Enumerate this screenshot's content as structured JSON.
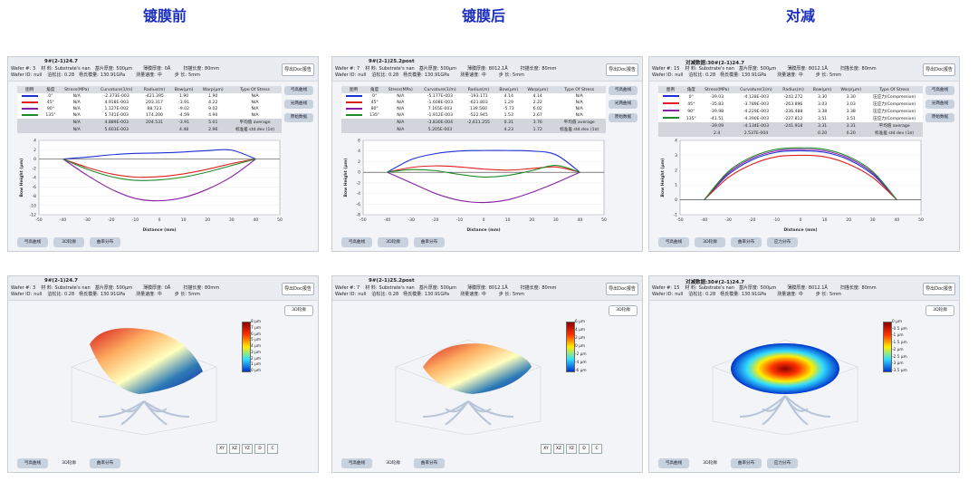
{
  "columns": [
    {
      "title": "镀膜前"
    },
    {
      "title": "镀膜后"
    },
    {
      "title": "对减"
    }
  ],
  "header_labels": {
    "wafer_no": "Wafer #:",
    "wafer_id": "Wafer ID:",
    "material": "材 料:",
    "poisson": "泊松比:",
    "thickness": "基片厚度:",
    "modulus": "杨氏模量:",
    "film": "薄膜厚度:",
    "speed": "测量速度:",
    "scan": "扫描长度:",
    "step": "步 长:",
    "export": "导出Doc报告"
  },
  "panels": [
    {
      "name": "9#(2-1)24.7",
      "prefix": "",
      "wafer_no": "3",
      "wafer_id": "null",
      "material": "Substrate's nan",
      "poisson": "0.28",
      "thickness": "500μm",
      "modulus": "130.91GPa",
      "film": "0Å",
      "speed": "中",
      "scan": "80mm",
      "step": "5mm",
      "table_headers": [
        "图例",
        "角度",
        "Stress(MPa)",
        "Curvature(1/m)",
        "Radius(m)",
        "Bow(μm)",
        "Warp(μm)",
        "Type Of Stress"
      ],
      "rows": [
        {
          "color": "#1f2fd6",
          "angle": "0°",
          "stress": "N/A",
          "curv": "-2.373E-003",
          "radius": "-421.395",
          "bow": "1.90",
          "warp": "1.90",
          "type": "N/A"
        },
        {
          "color": "#e02020",
          "angle": "45°",
          "stress": "N/A",
          "curv": "4.918E-003",
          "radius": "203.317",
          "bow": "-3.91",
          "warp": "4.22",
          "type": "N/A"
        },
        {
          "color": "#8a1fa6",
          "angle": "90°",
          "stress": "N/A",
          "curv": "1.127E-002",
          "radius": "88.723",
          "bow": "-9.02",
          "warp": "9.02",
          "type": "N/A"
        },
        {
          "color": "#1f8a2a",
          "angle": "135°",
          "stress": "N/A",
          "curv": "5.741E-003",
          "radius": "174.200",
          "bow": "-4.59",
          "warp": "4.90",
          "type": "N/A"
        }
      ],
      "avg": {
        "stress": "N/A",
        "curv": "4.889E-003",
        "radius": "204.531",
        "bow": "-3.91",
        "warp": "5.01",
        "type": "平均值 average"
      },
      "sd": {
        "stress": "N/A",
        "curv": "5.603E-003",
        "radius": "",
        "bow": "4.48",
        "warp": "2.96",
        "type": "标准差 std.dev (1σ)"
      },
      "side_buttons": [
        "弓高曲线",
        "光两曲线",
        "原始数据"
      ],
      "bottom_tabs": [
        "弓高曲线",
        "3D轮廓",
        "曲率分布"
      ],
      "bottom3d_tabs": [
        "弓高曲线",
        "3D轮廓",
        "曲率分布"
      ],
      "view3d_btn": "3D轮廓",
      "cbar_labels": [
        "8 μm",
        "7 μm",
        "6 μm",
        "5 μm",
        "4 μm",
        "3 μm",
        "2 μm",
        "1 μm",
        "0 μm"
      ],
      "view_buttons": [
        "XY",
        "XZ",
        "YZ",
        "D",
        "C"
      ]
    },
    {
      "name": "9#(2-1)25.2post",
      "prefix": "",
      "wafer_no": "7",
      "wafer_id": "null",
      "material": "Substrate's nan",
      "poisson": "0.28",
      "thickness": "500μm",
      "modulus": "130.91GPa",
      "film": "8012.1Å",
      "speed": "中",
      "scan": "80mm",
      "step": "5mm",
      "table_headers": [
        "图例",
        "角度",
        "Stress(MPa)",
        "Curvature(1/m)",
        "Radius(m)",
        "Bow(μm)",
        "Warp(μm)",
        "Type Of Stress"
      ],
      "rows": [
        {
          "color": "#1f2fd6",
          "angle": "0°",
          "stress": "N/A",
          "curv": "-5.177E-003",
          "radius": "-193.171",
          "bow": "4.14",
          "warp": "4.14",
          "type": "N/A"
        },
        {
          "color": "#e02020",
          "angle": "45°",
          "stress": "N/A",
          "curv": "-1.608E-003",
          "radius": "-621.803",
          "bow": "1.29",
          "warp": "2.22",
          "type": "N/A"
        },
        {
          "color": "#8a1fa6",
          "angle": "90°",
          "stress": "N/A",
          "curv": "7.165E-003",
          "radius": "139.560",
          "bow": "-5.73",
          "warp": "6.02",
          "type": "N/A"
        },
        {
          "color": "#1f8a2a",
          "angle": "135°",
          "stress": "N/A",
          "curv": "-1.912E-003",
          "radius": "-522.945",
          "bow": "1.53",
          "warp": "2.67",
          "type": "N/A"
        }
      ],
      "avg": {
        "stress": "N/A",
        "curv": "-3.830E-004",
        "radius": "-2,611.255",
        "bow": "0.31",
        "warp": "3.76",
        "type": "平均值 average"
      },
      "sd": {
        "stress": "N/A",
        "curv": "5.205E-003",
        "radius": "",
        "bow": "4.23",
        "warp": "1.72",
        "type": "标准差 std.dev (1σ)"
      },
      "side_buttons": [
        "弓高曲线",
        "光两曲线",
        "原始数据"
      ],
      "bottom_tabs": [
        "弓高曲线",
        "3D轮廓",
        "曲率分布"
      ],
      "bottom3d_tabs": [
        "弓高曲线",
        "3D轮廓",
        "曲率分布"
      ],
      "view3d_btn": "3D轮廓",
      "cbar_labels": [
        "6 μm",
        "4 μm",
        "2 μm",
        "0 μm",
        "-2 μm",
        "-4 μm",
        "-6 μm"
      ],
      "view_buttons": [
        "XY",
        "XZ",
        "YZ",
        "D",
        "C"
      ]
    },
    {
      "name": "30#(2-1)24.7",
      "prefix": "对减数据:",
      "wafer_no": "15",
      "wafer_id": "null",
      "material": "Substrate's nan",
      "poisson": "0.28",
      "thickness": "500μm",
      "modulus": "130.91GPa",
      "film": "8012.1Å",
      "speed": "中",
      "scan": "80mm",
      "step": "5mm",
      "table_headers": [
        "图例",
        "角度",
        "Stress(MPa)",
        "Curvature(1/m)",
        "Radius(m)",
        "Bow(μm)",
        "Warp(μm)",
        "Type Of Stress"
      ],
      "rows": [
        {
          "color": "#1f2fd6",
          "angle": "0°",
          "stress": "-39.03",
          "curv": "-4.128E-003",
          "radius": "-242.272",
          "bow": "3.30",
          "warp": "3.30",
          "type": "压应力(Compressive)"
        },
        {
          "color": "#e02020",
          "angle": "45°",
          "stress": "-35.83",
          "curv": "-3.789E-003",
          "radius": "-263.896",
          "bow": "3.03",
          "warp": "3.03",
          "type": "压应力(Compressive)"
        },
        {
          "color": "#8a1fa6",
          "angle": "90°",
          "stress": "-39.98",
          "curv": "-4.229E-003",
          "radius": "-236.488",
          "bow": "3.38",
          "warp": "3.38",
          "type": "压应力(Compressive)"
        },
        {
          "color": "#1f8a2a",
          "angle": "135°",
          "stress": "-41.51",
          "curv": "-4.390E-003",
          "radius": "-227.812",
          "bow": "3.51",
          "warp": "3.51",
          "type": "压应力(Compressive)"
        }
      ],
      "avg": {
        "stress": "-39.09",
        "curv": "-4.134E-003",
        "radius": "-241.918",
        "bow": "3.31",
        "warp": "3.31",
        "type": "平均值 average"
      },
      "sd": {
        "stress": "2.4",
        "curv": "2.537E-004",
        "radius": "",
        "bow": "0.20",
        "warp": "0.20",
        "type": "标准差 std.dev (1σ)"
      },
      "side_buttons": [
        "弓高曲线",
        "光两曲线",
        "原始数据"
      ],
      "bottom_tabs": [
        "弓高曲线",
        "3D轮廓",
        "曲率分布",
        "应力分布"
      ],
      "bottom3d_tabs": [
        "弓高曲线",
        "3D轮廓",
        "曲率分布",
        "应力分布"
      ],
      "view3d_btn": "3D轮廓",
      "cbar_labels": [
        "0 μm",
        "-0.5 μm",
        "-1 μm",
        "-1.5 μm",
        "-2 μm",
        "-2.5 μm",
        "-3 μm",
        "-3.5 μm"
      ],
      "view_buttons": []
    }
  ],
  "chart_data": [
    {
      "type": "line",
      "title": "9#(2-1)24.7",
      "xlabel": "Distance (mm)",
      "ylabel": "Bow Height (μm)",
      "xlim": [
        -50,
        50
      ],
      "ylim": [
        -12,
        4
      ],
      "x_ticks": [
        -50,
        -40,
        -30,
        -20,
        -10,
        0,
        10,
        20,
        30,
        40,
        50
      ],
      "y_ticks": [
        4,
        2,
        0,
        -2,
        -4,
        -6,
        -8,
        -10,
        -12
      ],
      "x": [
        -40,
        -30,
        -20,
        -10,
        0,
        10,
        20,
        30,
        40
      ],
      "series": [
        {
          "name": "0°",
          "color": "#1f2fd6",
          "values": [
            0,
            0.4,
            0.9,
            1.2,
            1.3,
            1.5,
            1.8,
            1.9,
            0
          ]
        },
        {
          "name": "45°",
          "color": "#e02020",
          "values": [
            0,
            -1.8,
            -3.2,
            -3.9,
            -3.8,
            -3.2,
            -2.2,
            -1.0,
            0
          ]
        },
        {
          "name": "90°",
          "color": "#8a1fa6",
          "values": [
            0,
            -3.5,
            -6.5,
            -8.5,
            -9.0,
            -8.3,
            -6.5,
            -3.8,
            0
          ]
        },
        {
          "name": "135°",
          "color": "#1f8a2a",
          "values": [
            0,
            -2.2,
            -3.8,
            -4.6,
            -4.5,
            -3.9,
            -2.8,
            -1.4,
            0
          ]
        }
      ]
    },
    {
      "type": "line",
      "title": "9#(2-1)25.2post",
      "xlabel": "Distance (mm)",
      "ylabel": "Bow Height (μm)",
      "xlim": [
        -50,
        50
      ],
      "ylim": [
        -8,
        6
      ],
      "x_ticks": [
        -50,
        -40,
        -30,
        -20,
        -10,
        0,
        10,
        20,
        30,
        40,
        50
      ],
      "y_ticks": [
        6,
        4,
        2,
        0,
        -2,
        -4,
        -6,
        -8
      ],
      "x": [
        -40,
        -30,
        -20,
        -10,
        0,
        10,
        20,
        30,
        40
      ],
      "series": [
        {
          "name": "0°",
          "color": "#1f2fd6",
          "values": [
            0,
            2.4,
            3.5,
            4.0,
            4.1,
            4.1,
            4.0,
            3.3,
            0
          ]
        },
        {
          "name": "45°",
          "color": "#e02020",
          "values": [
            0,
            0.9,
            1.2,
            1.0,
            0.6,
            0.4,
            0.7,
            1.0,
            0
          ]
        },
        {
          "name": "90°",
          "color": "#8a1fa6",
          "values": [
            0,
            -2.0,
            -4.0,
            -5.3,
            -5.7,
            -5.2,
            -3.8,
            -2.0,
            0
          ]
        },
        {
          "name": "135°",
          "color": "#1f8a2a",
          "values": [
            0,
            0.5,
            0.3,
            -0.4,
            -0.9,
            -0.6,
            0.3,
            1.3,
            0
          ]
        }
      ]
    },
    {
      "type": "line",
      "title": "30#(2-1)24.7",
      "xlabel": "Distance (mm)",
      "ylabel": "Bow Height (μm)",
      "xlim": [
        -50,
        50
      ],
      "ylim": [
        -1,
        4
      ],
      "x_ticks": [
        -50,
        -40,
        -30,
        -20,
        -10,
        0,
        10,
        20,
        30,
        40,
        50
      ],
      "y_ticks": [
        4,
        3,
        2,
        1,
        0,
        -1
      ],
      "x": [
        -40,
        -30,
        -20,
        -10,
        0,
        10,
        20,
        30,
        40
      ],
      "series": [
        {
          "name": "0°",
          "color": "#1f2fd6",
          "values": [
            0,
            1.7,
            2.7,
            3.2,
            3.3,
            3.2,
            2.7,
            1.7,
            0
          ]
        },
        {
          "name": "45°",
          "color": "#e02020",
          "values": [
            0,
            1.5,
            2.4,
            2.9,
            3.0,
            2.9,
            2.4,
            1.5,
            0
          ]
        },
        {
          "name": "90°",
          "color": "#8a1fa6",
          "values": [
            0,
            1.8,
            2.8,
            3.3,
            3.4,
            3.3,
            2.8,
            1.8,
            0
          ]
        },
        {
          "name": "135°",
          "color": "#1f8a2a",
          "values": [
            0,
            1.9,
            2.9,
            3.4,
            3.5,
            3.4,
            2.9,
            1.9,
            0
          ]
        }
      ]
    }
  ]
}
